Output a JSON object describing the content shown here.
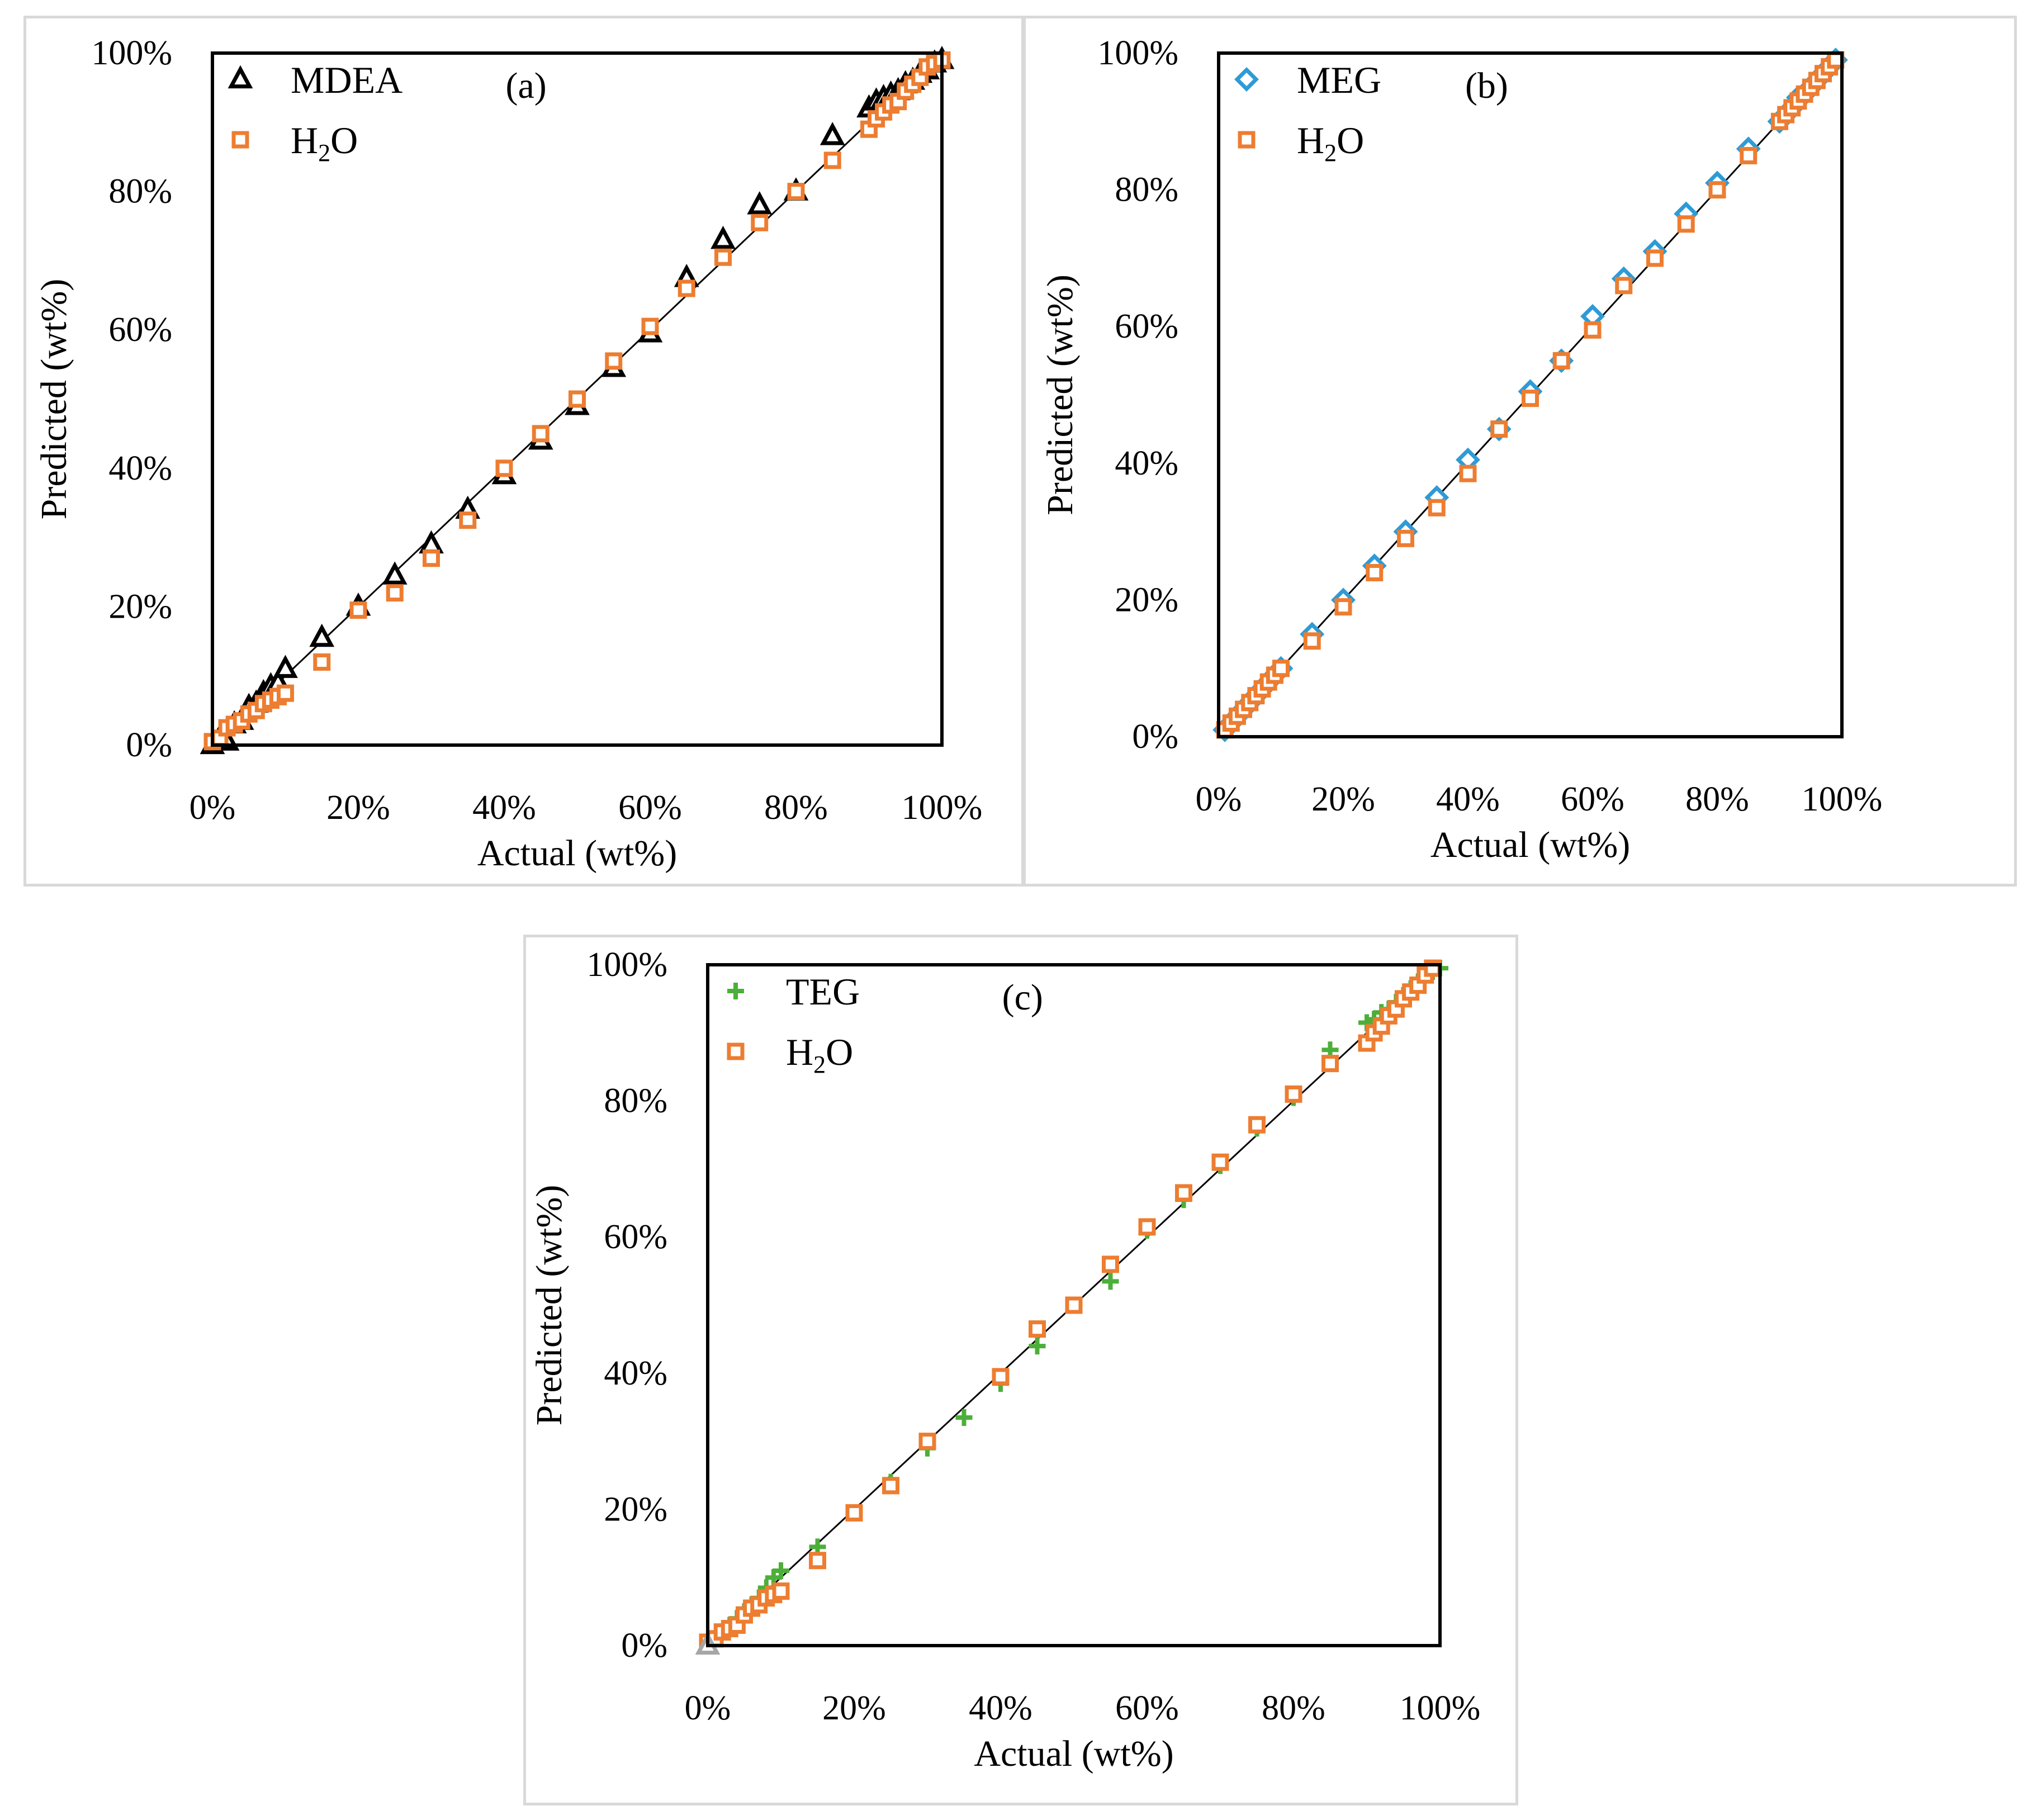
{
  "colors": {
    "frame": "#d9d9d9",
    "mdea": "#000000",
    "h2o": "#ED7D31",
    "meg": "#2E9BD6",
    "teg": "#4CAF3A",
    "origin_marker": "#a6a6a6"
  },
  "chart_data": [
    {
      "type": "scatter",
      "panel_label": "(a)",
      "xlabel": "Actual (wt%)",
      "ylabel": "Predicted (wt%)",
      "xlim": [
        0,
        100
      ],
      "ylim": [
        0,
        100
      ],
      "x_tick_labels": [
        "0%",
        "20%",
        "40%",
        "60%",
        "80%",
        "100%"
      ],
      "y_tick_labels": [
        "0%",
        "20%",
        "40%",
        "60%",
        "80%",
        "100%"
      ],
      "legend": {
        "placement": "top-left",
        "entries": [
          {
            "name": "MDEA",
            "marker": "triangle"
          },
          {
            "name": "H2O",
            "sub_base": "H",
            "sub_num": "2",
            "sub_tail": "O",
            "marker": "square"
          }
        ]
      },
      "parity_line": [
        0,
        100
      ],
      "series": [
        {
          "name": "MDEA",
          "marker": "triangle",
          "color": "#000000",
          "x": [
            0,
            1,
            2,
            3,
            4,
            5,
            6,
            7,
            8,
            9,
            10,
            15,
            20,
            25,
            30,
            35,
            40,
            45,
            50,
            55,
            60,
            65,
            70,
            75,
            80,
            85,
            90,
            91,
            92,
            93,
            94,
            95,
            96,
            97,
            98,
            99,
            100
          ],
          "y": [
            0,
            1,
            0.5,
            3,
            3.5,
            5.5,
            6,
            7.5,
            8.5,
            9,
            11,
            15.5,
            20,
            24.5,
            29,
            34,
            39,
            44,
            49,
            54.5,
            59.5,
            67.5,
            73,
            78,
            80,
            88,
            92,
            93,
            93.5,
            94,
            94.5,
            95.5,
            96,
            97,
            97.5,
            98.5,
            99
          ]
        },
        {
          "name": "H2O",
          "marker": "square",
          "color": "#ED7D31",
          "x": [
            0,
            1,
            2,
            3,
            4,
            5,
            6,
            7,
            8,
            9,
            10,
            15,
            20,
            25,
            30,
            35,
            40,
            45,
            50,
            55,
            60,
            65,
            70,
            75,
            80,
            85,
            90,
            91,
            92,
            93,
            94,
            95,
            96,
            97,
            98,
            99,
            100
          ],
          "y": [
            0.5,
            1,
            2.5,
            3,
            3.5,
            4.5,
            5,
            6,
            6.5,
            7,
            7.5,
            12,
            19.5,
            22,
            27,
            32.5,
            40,
            45,
            50,
            55.5,
            60.5,
            66,
            70.5,
            75.5,
            80,
            84.5,
            89,
            90.5,
            91.5,
            92.5,
            93,
            94.5,
            95.5,
            96.5,
            98,
            98.5,
            99
          ]
        }
      ]
    },
    {
      "type": "scatter",
      "panel_label": "(b)",
      "xlabel": "Actual (wt%)",
      "ylabel": "Predicted (wt%)",
      "xlim": [
        0,
        100
      ],
      "ylim": [
        0,
        100
      ],
      "x_tick_labels": [
        "0%",
        "20%",
        "40%",
        "60%",
        "80%",
        "100%"
      ],
      "y_tick_labels": [
        "0%",
        "20%",
        "40%",
        "60%",
        "80%",
        "100%"
      ],
      "legend": {
        "placement": "top-left",
        "entries": [
          {
            "name": "MEG",
            "marker": "diamond"
          },
          {
            "name": "H2O",
            "sub_base": "H",
            "sub_num": "2",
            "sub_tail": "O",
            "marker": "square"
          }
        ]
      },
      "parity_line": [
        0,
        100
      ],
      "series": [
        {
          "name": "MEG",
          "marker": "diamond",
          "color": "#2E9BD6",
          "x": [
            1,
            2,
            3,
            4,
            5,
            6,
            7,
            8,
            9,
            10,
            15,
            20,
            25,
            30,
            35,
            40,
            45,
            50,
            55,
            60,
            65,
            70,
            75,
            80,
            85,
            90,
            91,
            92,
            93,
            94,
            95,
            96,
            97,
            98,
            99
          ],
          "y": [
            1,
            2,
            3,
            4,
            5,
            6,
            7,
            8,
            9,
            10,
            15,
            20,
            25,
            30,
            35,
            40.5,
            45,
            50.5,
            55,
            61.5,
            67,
            71,
            76.5,
            81,
            86,
            90,
            91,
            92,
            93.5,
            94,
            95,
            96,
            97,
            98,
            99
          ]
        },
        {
          "name": "H2O",
          "marker": "square",
          "color": "#ED7D31",
          "x": [
            1,
            2,
            3,
            4,
            5,
            6,
            7,
            8,
            9,
            10,
            15,
            20,
            25,
            30,
            35,
            40,
            45,
            50,
            55,
            60,
            65,
            70,
            75,
            80,
            85,
            90,
            91,
            92,
            93,
            94,
            95,
            96,
            97,
            98,
            99
          ],
          "y": [
            1,
            2,
            3,
            4,
            5,
            6,
            7,
            8,
            9,
            10,
            14,
            19,
            24,
            29,
            33.5,
            38.5,
            45,
            49.5,
            55,
            59.5,
            66,
            70,
            75,
            80,
            85,
            90,
            91,
            92,
            93,
            94,
            95,
            96,
            97,
            98,
            99
          ]
        }
      ]
    },
    {
      "type": "scatter",
      "panel_label": "(c)",
      "xlabel": "Actual (wt%)",
      "ylabel": "Predicted (wt%)",
      "xlim": [
        0,
        100
      ],
      "ylim": [
        0,
        100
      ],
      "x_tick_labels": [
        "0%",
        "20%",
        "40%",
        "60%",
        "80%",
        "100%"
      ],
      "y_tick_labels": [
        "0%",
        "20%",
        "40%",
        "60%",
        "80%",
        "100%"
      ],
      "legend": {
        "placement": "top-left",
        "entries": [
          {
            "name": "TEG",
            "marker": "plus"
          },
          {
            "name": "H2O",
            "sub_base": "H",
            "sub_num": "2",
            "sub_tail": "O",
            "marker": "square"
          }
        ]
      },
      "parity_line": [
        0,
        100
      ],
      "origin_marker": {
        "x": 0,
        "y": 0,
        "marker": "triangle"
      },
      "series": [
        {
          "name": "TEG",
          "marker": "plus",
          "color": "#4CAF3A",
          "x": [
            0,
            1,
            2,
            3,
            4,
            5,
            6,
            7,
            8,
            9,
            10,
            15,
            20,
            25,
            30,
            35,
            40,
            45,
            50,
            55,
            60,
            65,
            70,
            75,
            80,
            85,
            90,
            91,
            92,
            93,
            94,
            95,
            96,
            97,
            98,
            99,
            100
          ],
          "y": [
            0,
            1,
            2,
            3,
            4,
            5,
            6,
            7,
            8.5,
            10,
            11,
            14.5,
            19.5,
            24,
            29,
            33.5,
            38.5,
            44,
            50,
            53.5,
            61,
            65.5,
            70.5,
            76,
            80.5,
            87.5,
            91.5,
            92,
            93,
            93.5,
            94.5,
            95.5,
            96.5,
            97.5,
            98.5,
            99,
            99.5
          ]
        },
        {
          "name": "H2O",
          "marker": "square",
          "color": "#ED7D31",
          "x": [
            0,
            1,
            2,
            3,
            4,
            5,
            6,
            7,
            8,
            9,
            10,
            15,
            20,
            25,
            30,
            40,
            45,
            50,
            55,
            60,
            65,
            70,
            75,
            80,
            85,
            90,
            91,
            92,
            93,
            94,
            95,
            96,
            97,
            98,
            99
          ],
          "y": [
            0.5,
            1,
            2,
            2.5,
            3,
            4.5,
            5.5,
            6,
            7,
            7.5,
            8,
            12.5,
            19.5,
            23.5,
            30,
            39.5,
            46.5,
            50,
            56,
            61.5,
            66.5,
            71,
            76.5,
            81,
            85.5,
            88.5,
            90,
            91,
            92.5,
            93.5,
            95,
            96,
            97,
            98.5,
            99.5
          ]
        }
      ]
    }
  ]
}
